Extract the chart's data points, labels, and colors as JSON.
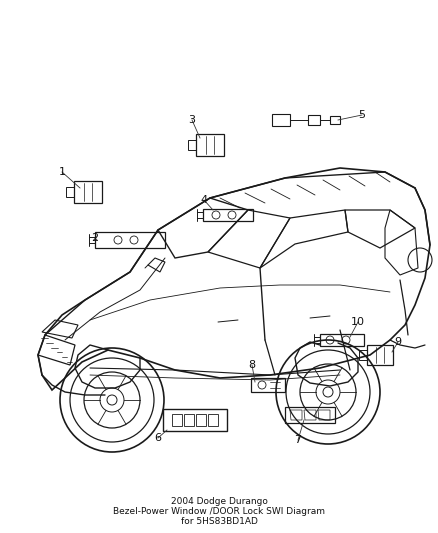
{
  "title": "2004 Dodge Durango",
  "subtitle1": "Bezel-Power Window /DOOR Lock SWI Diagram",
  "subtitle2": "for 5HS83BD1AD",
  "bg_color": "#ffffff",
  "line_color": "#1a1a1a",
  "fig_width": 4.38,
  "fig_height": 5.33,
  "dpi": 100,
  "font_size_callout": 8,
  "font_size_title": 6.5,
  "callout_line_color": "#333333",
  "callout_lw": 0.6,
  "part_lw": 0.9
}
